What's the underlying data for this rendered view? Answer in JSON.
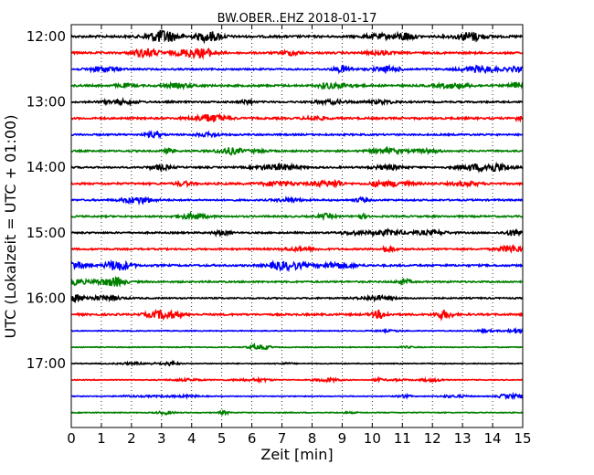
{
  "chart_data": {
    "type": "line",
    "title": "BW.OBER..EHZ 2018-01-17",
    "xlabel": "Zeit  [min]",
    "ylabel": "UTC (Lokalzeit = UTC + 01:00)",
    "xlim": [
      0,
      15
    ],
    "x_ticks": [
      "0",
      "1",
      "2",
      "3",
      "4",
      "5",
      "6",
      "7",
      "8",
      "9",
      "10",
      "11",
      "12",
      "13",
      "14",
      "15"
    ],
    "y_ticks": [
      "12:00",
      "13:00",
      "14:00",
      "15:00",
      "16:00",
      "17:00"
    ],
    "grid": "vertical-dotted",
    "trace_interval_min": 15,
    "trace_colors": [
      "#000000",
      "#ff0000",
      "#0000ff",
      "#008000"
    ],
    "traces": [
      {
        "start": "12:00",
        "color": "#000000",
        "amplitude": 0.8
      },
      {
        "start": "12:15",
        "color": "#ff0000",
        "amplitude": 0.7
      },
      {
        "start": "12:30",
        "color": "#0000ff",
        "amplitude": 0.6
      },
      {
        "start": "12:45",
        "color": "#008000",
        "amplitude": 0.7
      },
      {
        "start": "13:00",
        "color": "#000000",
        "amplitude": 0.6
      },
      {
        "start": "13:15",
        "color": "#ff0000",
        "amplitude": 0.7
      },
      {
        "start": "13:30",
        "color": "#0000ff",
        "amplitude": 0.6
      },
      {
        "start": "13:45",
        "color": "#008000",
        "amplitude": 0.6
      },
      {
        "start": "14:00",
        "color": "#000000",
        "amplitude": 0.6
      },
      {
        "start": "14:15",
        "color": "#ff0000",
        "amplitude": 0.7
      },
      {
        "start": "14:30",
        "color": "#0000ff",
        "amplitude": 0.6
      },
      {
        "start": "14:45",
        "color": "#008000",
        "amplitude": 0.6
      },
      {
        "start": "15:00",
        "color": "#000000",
        "amplitude": 0.6
      },
      {
        "start": "15:15",
        "color": "#ff0000",
        "amplitude": 0.6
      },
      {
        "start": "15:30",
        "color": "#0000ff",
        "amplitude": 0.7
      },
      {
        "start": "15:45",
        "color": "#008000",
        "amplitude": 0.6
      },
      {
        "start": "16:00",
        "color": "#000000",
        "amplitude": 0.5
      },
      {
        "start": "16:15",
        "color": "#ff0000",
        "amplitude": 0.7
      },
      {
        "start": "16:30",
        "color": "#0000ff",
        "amplitude": 0.3
      },
      {
        "start": "16:45",
        "color": "#008000",
        "amplitude": 0.3
      },
      {
        "start": "17:00",
        "color": "#000000",
        "amplitude": 0.3
      },
      {
        "start": "17:15",
        "color": "#ff0000",
        "amplitude": 0.3
      },
      {
        "start": "17:30",
        "color": "#0000ff",
        "amplitude": 0.3
      },
      {
        "start": "17:45",
        "color": "#008000",
        "amplitude": 0.3
      }
    ]
  }
}
